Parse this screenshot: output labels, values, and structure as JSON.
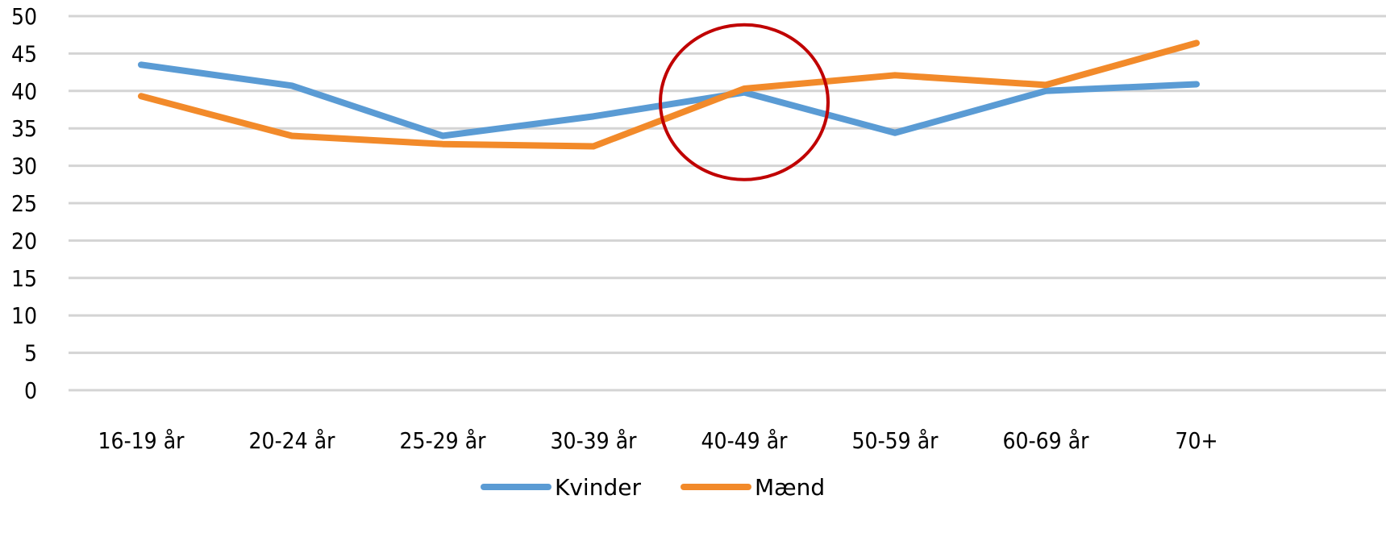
{
  "chart_data": {
    "type": "line",
    "title": "",
    "xlabel": "",
    "ylabel": "",
    "categories": [
      "16-19 år",
      "20-24 år",
      "25-29 år",
      "30-39 år",
      "40-49 år",
      "50-59 år",
      "60-69 år",
      "70+"
    ],
    "series": [
      {
        "name": "Kvinder",
        "color": "#5a9bd4",
        "values": [
          43.5,
          40.7,
          34.0,
          36.6,
          39.8,
          34.4,
          40.0,
          40.9
        ]
      },
      {
        "name": "Mænd",
        "color": "#f28a2a",
        "values": [
          39.3,
          34.0,
          32.9,
          32.6,
          40.3,
          42.1,
          40.8,
          46.4
        ]
      }
    ],
    "ylim": [
      0,
      50
    ],
    "yticks": [
      0,
      5,
      10,
      15,
      20,
      25,
      30,
      35,
      40,
      45,
      50
    ],
    "grid": true,
    "legend_position": "bottom",
    "annotation": {
      "shape": "circle",
      "category": "40-49 år",
      "y": 38.5,
      "color": "#c00000"
    }
  }
}
